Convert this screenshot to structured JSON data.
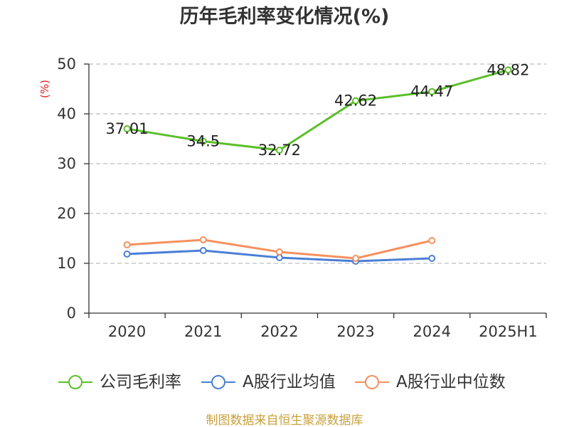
{
  "footer": "制图数据来自恒生聚源数据库",
  "colors": {
    "title": "#333333",
    "ylabel": "#e0201a",
    "footer": "#c9a13c",
    "axis": "#333333",
    "grid": "#bdbdbd"
  },
  "chart_data": {
    "type": "line",
    "title": "历年毛利率变化情况(%)",
    "ylabel": "(%)",
    "categories": [
      "2020",
      "2021",
      "2022",
      "2023",
      "2024",
      "2025H1"
    ],
    "ylim": [
      0,
      50
    ],
    "yticks": [
      0,
      10,
      20,
      30,
      40,
      50
    ],
    "grid": true,
    "series": [
      {
        "name": "公司毛利率",
        "color": "#5cbf2a",
        "show_labels": true,
        "values": [
          37.01,
          34.5,
          32.72,
          42.62,
          44.47,
          48.82
        ]
      },
      {
        "name": "A股行业均值",
        "color": "#4a7fd6",
        "show_labels": false,
        "values": [
          11.86,
          12.57,
          11.14,
          10.43,
          11.0,
          null
        ]
      },
      {
        "name": "A股行业中位数",
        "color": "#f5905e",
        "show_labels": false,
        "values": [
          13.71,
          14.71,
          12.29,
          11.0,
          14.57,
          null
        ]
      }
    ]
  }
}
